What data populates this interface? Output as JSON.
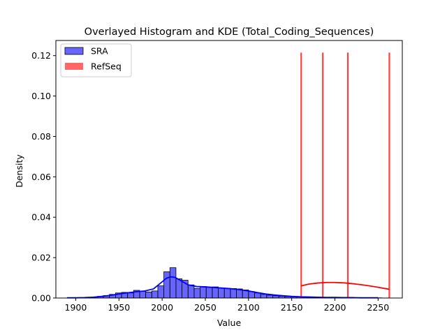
{
  "chart_data": {
    "type": "histogram",
    "title": "Overlayed Histogram and KDE (Total_Coding_Sequences)",
    "xlabel": "Value",
    "ylabel": "Density",
    "xlim": [
      1877,
      2278
    ],
    "ylim": [
      0,
      0.1275
    ],
    "xticks": [
      1900,
      1950,
      2000,
      2050,
      2100,
      2150,
      2200,
      2250
    ],
    "yticks": [
      0.0,
      0.02,
      0.04,
      0.06,
      0.08,
      0.1,
      0.12
    ],
    "ytick_labels": [
      "0.00",
      "0.02",
      "0.04",
      "0.06",
      "0.08",
      "0.10",
      "0.12"
    ],
    "grid": false,
    "legend_position": "top-left",
    "colors": {
      "sra": "#0000ff",
      "refseq": "#ff0000"
    },
    "series": [
      {
        "name": "SRA",
        "kind": "histogram+kde",
        "bin_edges": [
          1890,
          1897,
          1904,
          1911,
          1918,
          1925,
          1932,
          1939,
          1946,
          1953,
          1960,
          1967,
          1974,
          1981,
          1988,
          1995,
          2002,
          2009,
          2016,
          2023,
          2030,
          2037,
          2044,
          2051,
          2058,
          2065,
          2072,
          2079,
          2086,
          2093,
          2100,
          2107,
          2114,
          2121,
          2128,
          2135,
          2142,
          2149,
          2156,
          2163,
          2170,
          2177,
          2184,
          2191,
          2198,
          2205,
          2212,
          2219,
          2226,
          2233,
          2240,
          2247,
          2254
        ],
        "densities": [
          0.0001,
          0.0001,
          0.0002,
          0.0003,
          0.0005,
          0.0008,
          0.0012,
          0.0018,
          0.0025,
          0.0028,
          0.0025,
          0.0038,
          0.0033,
          0.003,
          0.0035,
          0.006,
          0.013,
          0.015,
          0.0095,
          0.0088,
          0.0065,
          0.0048,
          0.0057,
          0.0054,
          0.0055,
          0.005,
          0.0048,
          0.0047,
          0.0045,
          0.004,
          0.0032,
          0.0025,
          0.0018,
          0.0014,
          0.0011,
          0.0009,
          0.0007,
          0.0006,
          0.0005,
          0.0004,
          0.0003,
          0.0003,
          0.0002,
          0.0002,
          0.0002,
          0.0001,
          0.0001,
          0.0001,
          0.0001,
          0.0001,
          0.0001,
          0.0001
        ],
        "kde": {
          "x": [
            1890,
            1900,
            1910,
            1920,
            1930,
            1940,
            1950,
            1960,
            1970,
            1980,
            1990,
            2000,
            2005,
            2010,
            2015,
            2020,
            2030,
            2040,
            2050,
            2060,
            2070,
            2080,
            2090,
            2100,
            2110,
            2120,
            2130,
            2140,
            2150,
            2160,
            2170,
            2180,
            2190,
            2200,
            2210,
            2220,
            2230,
            2240,
            2250
          ],
          "y": [
            0.0001,
            0.0001,
            0.0002,
            0.0004,
            0.0008,
            0.0013,
            0.002,
            0.0026,
            0.0031,
            0.0035,
            0.0045,
            0.008,
            0.0098,
            0.0105,
            0.0102,
            0.009,
            0.0065,
            0.0057,
            0.0055,
            0.0052,
            0.0049,
            0.0046,
            0.0041,
            0.0035,
            0.0027,
            0.002,
            0.0015,
            0.0011,
            0.0008,
            0.0006,
            0.0005,
            0.0004,
            0.0003,
            0.0003,
            0.0002,
            0.0002,
            0.0001,
            0.0001,
            0.0001
          ]
        }
      },
      {
        "name": "RefSeq",
        "kind": "histogram+kde",
        "values": [
          2161,
          2186,
          2215,
          2263
        ],
        "line_height": 0.1215,
        "kde": {
          "x": [
            2161,
            2170,
            2180,
            2190,
            2200,
            2210,
            2220,
            2230,
            2240,
            2250,
            2263
          ],
          "y": [
            0.006,
            0.0069,
            0.0074,
            0.0077,
            0.0077,
            0.0075,
            0.0071,
            0.0066,
            0.006,
            0.0053,
            0.0043
          ]
        }
      }
    ]
  }
}
